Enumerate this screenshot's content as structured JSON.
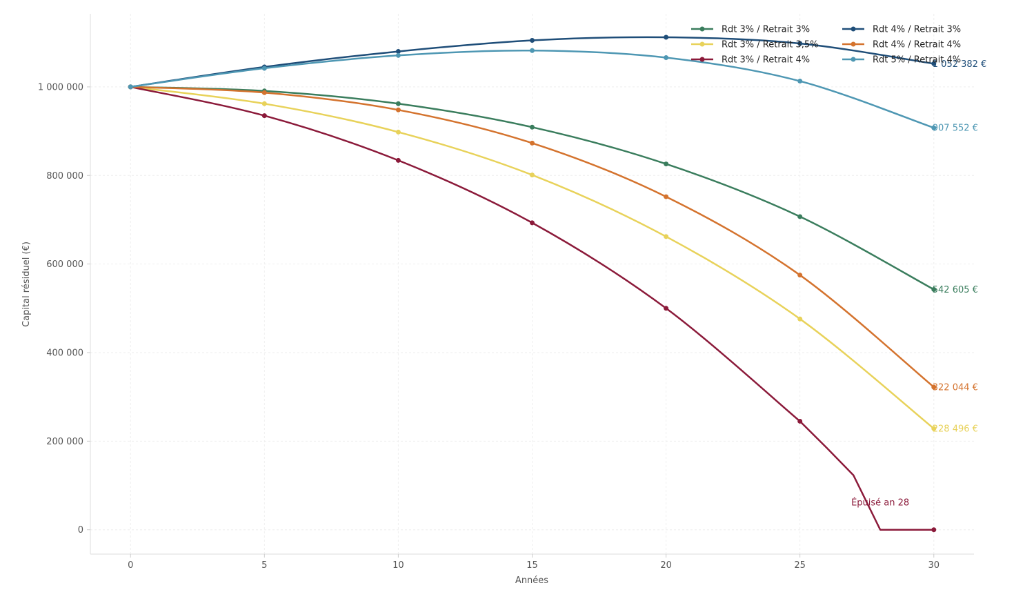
{
  "chart_data": {
    "type": "line",
    "title": "",
    "xlabel": "Années",
    "ylabel": "Capital résiduel (€)",
    "xlim": [
      -1.5,
      31.5
    ],
    "ylim": [
      -55000,
      1165000
    ],
    "x_ticks": [
      0,
      5,
      10,
      15,
      20,
      25,
      30
    ],
    "y_ticks": [
      0,
      200000,
      400000,
      600000,
      800000,
      1000000
    ],
    "y_tick_labels": [
      "0",
      "200 000",
      "400 000",
      "600 000",
      "800 000",
      "1 000 000"
    ],
    "grid": true,
    "legend_position": "top-right",
    "legend_columns": 2,
    "marker_x": [
      0,
      5,
      10,
      15,
      20,
      25,
      30
    ],
    "series": [
      {
        "name": "Rdt 3% / Retrait 3%",
        "color": "#3a7d5d",
        "end_label": "542 605 €",
        "x": [
          0,
          5,
          10,
          15,
          20,
          25,
          30
        ],
        "values": [
          1000000,
          990800,
          962000,
          909000,
          826000,
          707000,
          542605
        ]
      },
      {
        "name": "Rdt 3% / Retrait 3,5%",
        "color": "#e8d25a",
        "end_label": "228 496 €",
        "x": [
          0,
          5,
          10,
          15,
          20,
          25,
          30
        ],
        "values": [
          1000000,
          962000,
          898000,
          801000,
          662000,
          476000,
          228496
        ]
      },
      {
        "name": "Rdt 3% / Retrait 4%",
        "color": "#8b1a3a",
        "end_label": "",
        "x": [
          0,
          5,
          10,
          15,
          20,
          25,
          26,
          27,
          28,
          29,
          30
        ],
        "values": [
          1000000,
          935000,
          834000,
          693000,
          500000,
          245000,
          185000,
          123000,
          0,
          0,
          0
        ]
      },
      {
        "name": "Rdt 4% / Retrait 3%",
        "color": "#1f4e79",
        "end_label": "1 052 382 €",
        "x": [
          0,
          5,
          10,
          15,
          20,
          25,
          30
        ],
        "values": [
          1000000,
          1045000,
          1080000,
          1105000,
          1112000,
          1098000,
          1052382
        ]
      },
      {
        "name": "Rdt 4% / Retrait 4%",
        "color": "#d4732e",
        "end_label": "322 044 €",
        "x": [
          0,
          5,
          10,
          15,
          20,
          25,
          30
        ],
        "values": [
          1000000,
          987000,
          948000,
          873000,
          752000,
          575000,
          322044
        ]
      },
      {
        "name": "Rdt 5% / Retrait 4%",
        "color": "#4e97b3",
        "end_label": "907 552 €",
        "x": [
          0,
          5,
          10,
          15,
          20,
          25,
          30
        ],
        "values": [
          1000000,
          1042000,
          1071000,
          1082000,
          1066000,
          1013000,
          907552
        ]
      }
    ],
    "annotations": [
      {
        "text": "Épuisé an 28",
        "x": 28,
        "y": 62000,
        "color": "#8b1a3a"
      }
    ]
  }
}
